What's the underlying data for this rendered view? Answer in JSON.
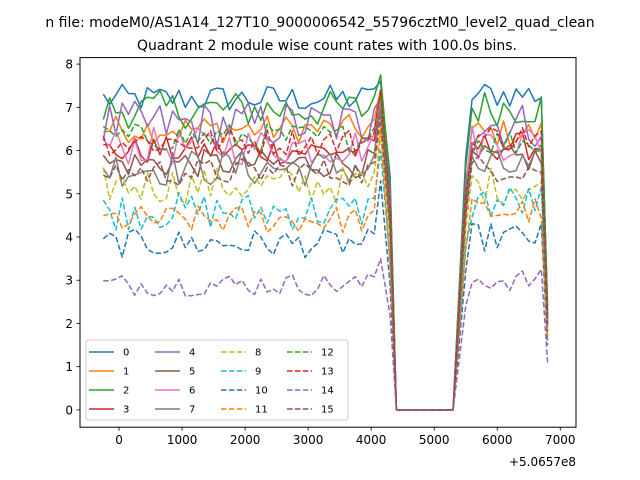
{
  "figure": {
    "suptitle": "n file: modeM0/AS1A14_127T10_9000006542_55796cztM0_level2_quad_clean"
  },
  "chart_data": {
    "type": "line",
    "title": "Quadrant 2 module wise count rates with 100.0s bins.",
    "xlabel": "",
    "ylabel": "",
    "x_offset_label": "+5.0657e8",
    "xlim": [
      -620,
      7250
    ],
    "ylim": [
      -0.4,
      8.15
    ],
    "xticks": [
      0,
      1000,
      2000,
      3000,
      4000,
      5000,
      6000,
      7000
    ],
    "xtick_labels": [
      "0",
      "1000",
      "2000",
      "3000",
      "4000",
      "5000",
      "6000",
      "7000"
    ],
    "yticks": [
      0,
      1,
      2,
      3,
      4,
      5,
      6,
      7,
      8
    ],
    "ytick_labels": [
      "0",
      "1",
      "2",
      "3",
      "4",
      "5",
      "6",
      "7",
      "8"
    ],
    "grid": false,
    "legend_position": "lower-left",
    "segments": {
      "first": {
        "start": -250,
        "step": 100,
        "count": 45
      },
      "gap": [
        4400,
        4500,
        4600,
        4700,
        4800,
        4900,
        5000,
        5100,
        5200,
        5300
      ],
      "second": {
        "start": 5500,
        "step": 100,
        "count": 14
      }
    },
    "series": [
      {
        "name": "0",
        "color": "#1f77b4",
        "dash": "solid",
        "level1": 7.2,
        "noise": 0.15,
        "peak": 7.6,
        "level2": 7.3,
        "end": 2.4
      },
      {
        "name": "1",
        "color": "#ff7f0e",
        "dash": "solid",
        "level1": 6.5,
        "noise": 0.15,
        "peak": 7.4,
        "level2": 6.4,
        "end": 1.8
      },
      {
        "name": "2",
        "color": "#2ca02c",
        "dash": "solid",
        "level1": 6.95,
        "noise": 0.2,
        "peak": 7.75,
        "level2": 7.0,
        "end": 2.3
      },
      {
        "name": "3",
        "color": "#d62728",
        "dash": "solid",
        "level1": 6.0,
        "noise": 0.15,
        "peak": 7.3,
        "level2": 6.1,
        "end": 2.1
      },
      {
        "name": "4",
        "color": "#9467bd",
        "dash": "solid",
        "level1": 6.6,
        "noise": 0.25,
        "peak": 7.2,
        "level2": 6.6,
        "end": 2.2
      },
      {
        "name": "5",
        "color": "#8c564b",
        "dash": "solid",
        "level1": 5.7,
        "noise": 0.15,
        "peak": 7.1,
        "level2": 5.8,
        "end": 2.0
      },
      {
        "name": "6",
        "color": "#e377c2",
        "dash": "solid",
        "level1": 6.1,
        "noise": 0.2,
        "peak": 7.2,
        "level2": 6.2,
        "end": 2.1
      },
      {
        "name": "7",
        "color": "#7f7f7f",
        "dash": "solid",
        "level1": 5.6,
        "noise": 0.2,
        "peak": 7.0,
        "level2": 5.6,
        "end": 2.0
      },
      {
        "name": "8",
        "color": "#bcbd22",
        "dash": "dashed",
        "level1": 5.2,
        "noise": 0.2,
        "peak": 6.6,
        "level2": 5.2,
        "end": 1.9
      },
      {
        "name": "9",
        "color": "#17becf",
        "dash": "dashed",
        "level1": 4.6,
        "noise": 0.2,
        "peak": 6.0,
        "level2": 4.8,
        "end": 1.7
      },
      {
        "name": "10",
        "color": "#1f77b4",
        "dash": "dashed",
        "level1": 3.85,
        "noise": 0.15,
        "peak": 5.3,
        "level2": 4.0,
        "end": 1.5
      },
      {
        "name": "11",
        "color": "#ff7f0e",
        "dash": "dashed",
        "level1": 4.4,
        "noise": 0.15,
        "peak": 6.5,
        "level2": 4.6,
        "end": 1.6
      },
      {
        "name": "12",
        "color": "#2ca02c",
        "dash": "dashed",
        "level1": 6.3,
        "noise": 0.15,
        "peak": 7.3,
        "level2": 6.2,
        "end": 2.1
      },
      {
        "name": "13",
        "color": "#d62728",
        "dash": "dashed",
        "level1": 6.2,
        "noise": 0.15,
        "peak": 7.4,
        "level2": 6.3,
        "end": 2.1
      },
      {
        "name": "14",
        "color": "#9467bd",
        "dash": "dashed",
        "level1": 2.9,
        "noise": 0.12,
        "peak": 3.5,
        "level2": 3.0,
        "end": 1.1
      },
      {
        "name": "15",
        "color": "#8c564b",
        "dash": "dashed",
        "level1": 5.5,
        "noise": 0.15,
        "peak": 6.8,
        "level2": 5.6,
        "end": 1.9
      }
    ]
  }
}
